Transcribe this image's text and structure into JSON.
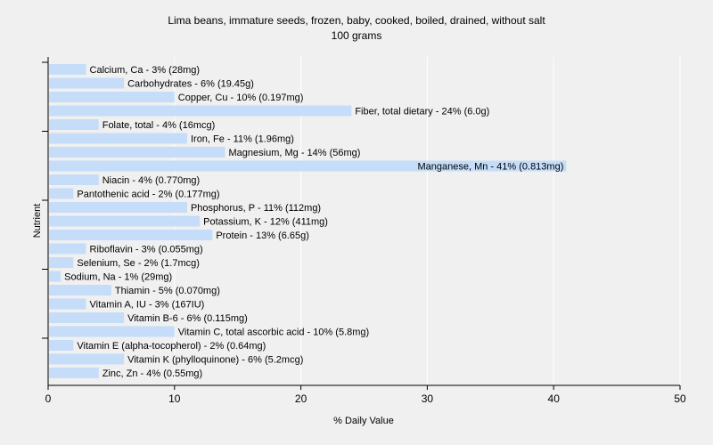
{
  "chart_data": {
    "type": "bar",
    "orientation": "horizontal",
    "title": "Lima beans, immature seeds, frozen, baby, cooked, boiled, drained, without salt",
    "subtitle": "100 grams",
    "xlabel": "% Daily Value",
    "ylabel": "Nutrient",
    "xlim": [
      0,
      50
    ],
    "xticks": [
      0,
      10,
      20,
      30,
      40,
      50
    ],
    "grid": "vertical",
    "bar_color": "#c5ddf8",
    "categories": [
      "Calcium, Ca",
      "Carbohydrates",
      "Copper, Cu",
      "Fiber, total dietary",
      "Folate, total",
      "Iron, Fe",
      "Magnesium, Mg",
      "Manganese, Mn",
      "Niacin",
      "Pantothenic acid",
      "Phosphorus, P",
      "Potassium, K",
      "Protein",
      "Riboflavin",
      "Selenium, Se",
      "Sodium, Na",
      "Thiamin",
      "Vitamin A, IU",
      "Vitamin B-6",
      "Vitamin C, total ascorbic acid",
      "Vitamin E (alpha-tocopherol)",
      "Vitamin K (phylloquinone)",
      "Zinc, Zn"
    ],
    "values": [
      3,
      6,
      10,
      24,
      4,
      11,
      14,
      41,
      4,
      2,
      11,
      12,
      13,
      3,
      2,
      1,
      5,
      3,
      6,
      10,
      2,
      6,
      4
    ],
    "labels": [
      "Calcium, Ca - 3% (28mg)",
      "Carbohydrates - 6% (19.45g)",
      "Copper, Cu - 10% (0.197mg)",
      "Fiber, total dietary - 24% (6.0g)",
      "Folate, total - 4% (16mcg)",
      "Iron, Fe - 11% (1.96mg)",
      "Magnesium, Mg - 14% (56mg)",
      "Manganese, Mn - 41% (0.813mg)",
      "Niacin - 4% (0.770mg)",
      "Pantothenic acid - 2% (0.177mg)",
      "Phosphorus, P - 11% (112mg)",
      "Potassium, K - 12% (411mg)",
      "Protein - 13% (6.65g)",
      "Riboflavin - 3% (0.055mg)",
      "Selenium, Se - 2% (1.7mcg)",
      "Sodium, Na - 1% (29mg)",
      "Thiamin - 5% (0.070mg)",
      "Vitamin A, IU - 3% (167IU)",
      "Vitamin B-6 - 6% (0.115mg)",
      "Vitamin C, total ascorbic acid - 10% (5.8mg)",
      "Vitamin E (alpha-tocopherol) - 2% (0.64mg)",
      "Vitamin K (phylloquinone) - 6% (5.2mcg)",
      "Zinc, Zn - 4% (0.55mg)"
    ]
  }
}
